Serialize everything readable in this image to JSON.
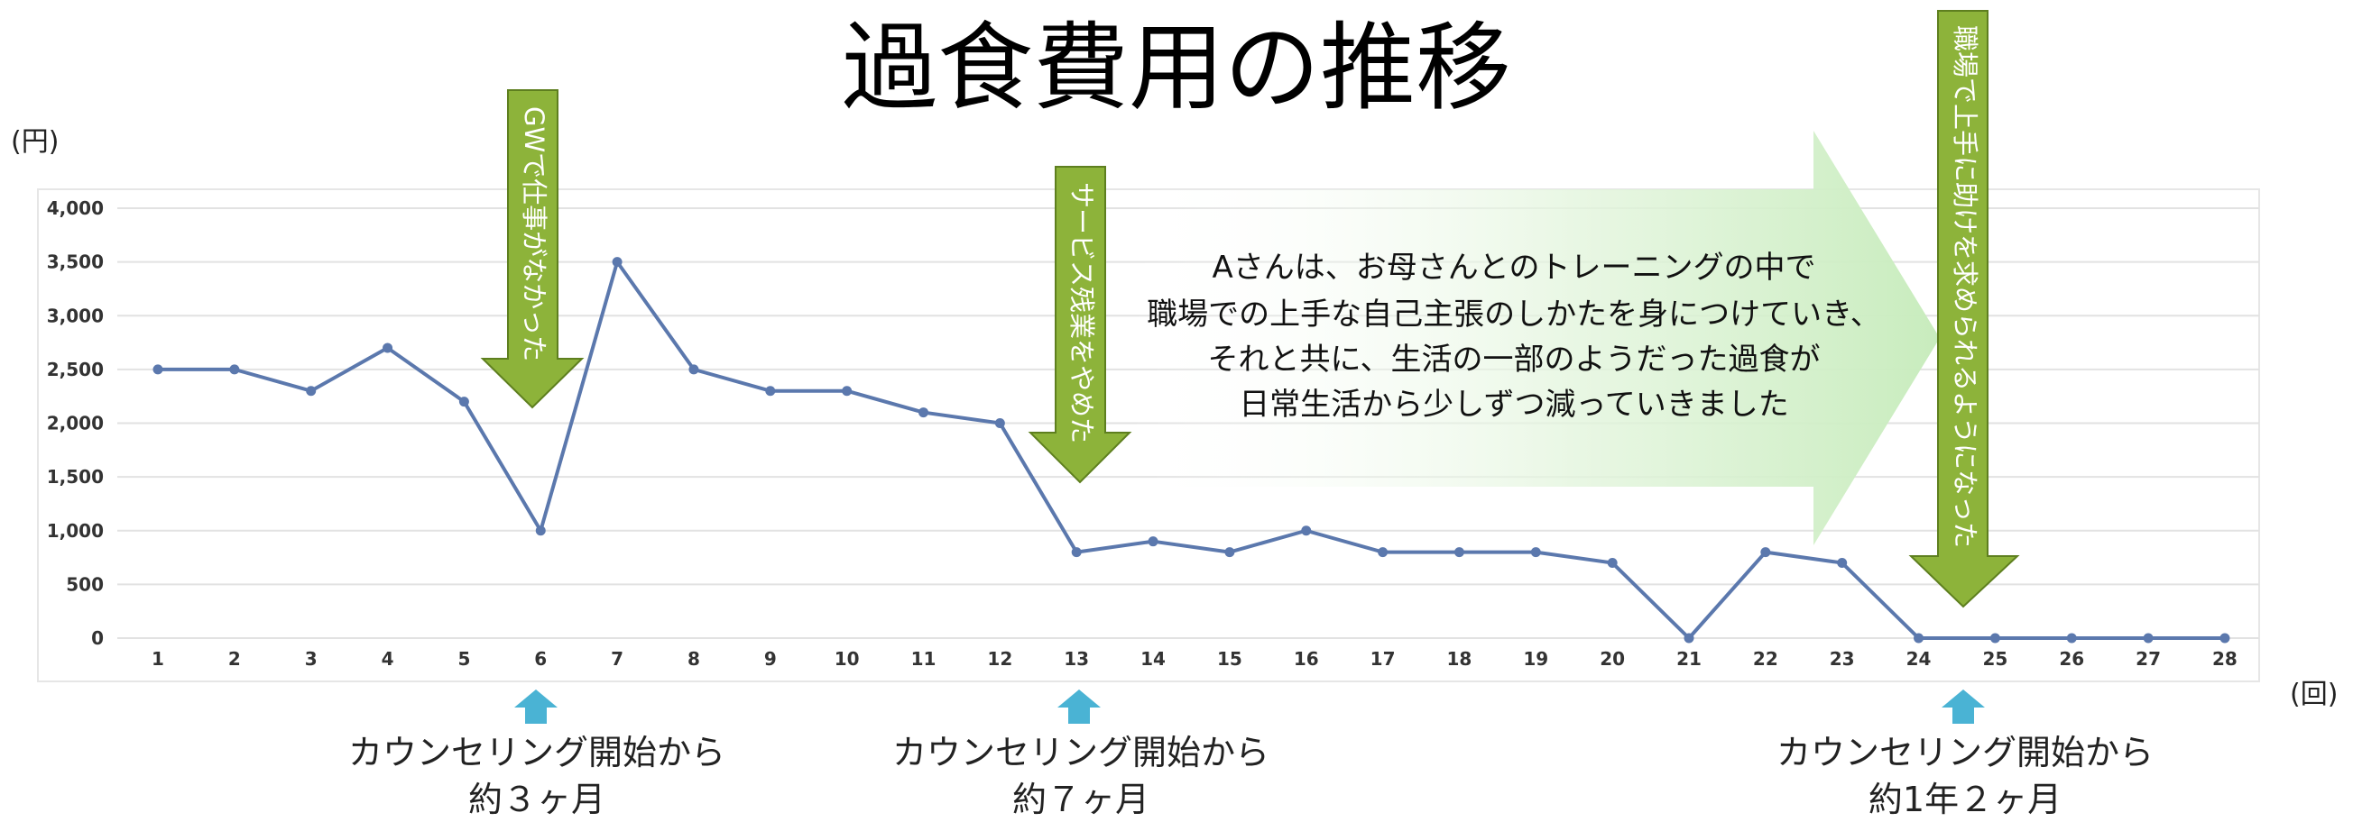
{
  "chart_data": {
    "type": "line",
    "title": "過食費用の推移",
    "ylabel": "(円)",
    "xlabel": "(回)",
    "ylim": [
      0,
      4000
    ],
    "yticks": [
      "0",
      "500",
      "1,000",
      "1,500",
      "2,000",
      "2,500",
      "3,000",
      "3,500",
      "4,000"
    ],
    "x": [
      1,
      2,
      3,
      4,
      5,
      6,
      7,
      8,
      9,
      10,
      11,
      12,
      13,
      14,
      15,
      16,
      17,
      18,
      19,
      20,
      21,
      22,
      23,
      24,
      25,
      26,
      27,
      28
    ],
    "series": [
      {
        "values": [
          2500,
          2500,
          2300,
          2700,
          2200,
          1000,
          3500,
          2500,
          2300,
          2300,
          2100,
          2000,
          800,
          900,
          800,
          1000,
          800,
          800,
          800,
          700,
          0,
          800,
          700,
          0,
          0,
          0,
          0,
          0
        ]
      }
    ],
    "grid": true,
    "legend": "none",
    "line_color": "#5b78ad",
    "annotations": [
      {
        "text": "GWで仕事がなかった",
        "at_x": 6
      },
      {
        "text": "サービス残業をやめた",
        "at_x": 13
      },
      {
        "text": "職場で上手に助けを求められるようになった",
        "at_x": 24.6
      }
    ],
    "note": {
      "lines": [
        "Aさんは、お母さんとのトレーニングの中で",
        "職場での上手な自己主張のしかたを身につけていき、",
        "それと共に、生活の一部のようだった過食が",
        "日常生活から少しずつ減っていきました"
      ]
    },
    "milestones": [
      {
        "at_x": 6,
        "line1": "カウンセリング開始から",
        "line2": "約３ヶ月"
      },
      {
        "at_x": 13,
        "line1": "カウンセリング開始から",
        "line2": "約７ヶ月"
      },
      {
        "at_x": 24.6,
        "line1": "カウンセリング開始から",
        "line2": "約1年２ヶ月"
      }
    ],
    "colors": {
      "arrow_fill": "#8db33a",
      "arrow_stroke": "#5e7f1f",
      "small_arrow": "#4ab3d4",
      "note_arrow": "#cfeec4"
    }
  }
}
